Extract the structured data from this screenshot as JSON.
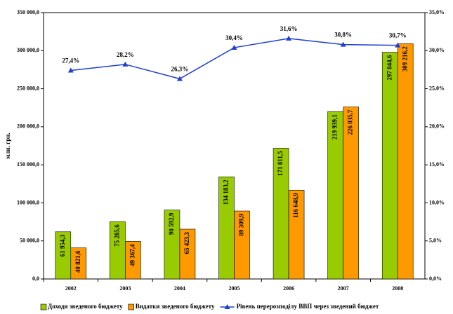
{
  "chart_data": {
    "type": "bar",
    "y_label": "млн. грн.",
    "categories": [
      "2002",
      "2003",
      "2004",
      "2005",
      "2006",
      "2007",
      "2008"
    ],
    "series": [
      {
        "name": "Доходи зведеного бюджету",
        "color": "#99cc00",
        "type": "bar",
        "values": [
          61954.3,
          75285.6,
          90592.9,
          134183.2,
          171811.5,
          219939.1,
          297844.6
        ],
        "value_labels": [
          "61 954,3",
          "75 285,6",
          "90 592,9",
          "134 183,2",
          "171 811,5",
          "219 939,1",
          "297 844,6"
        ]
      },
      {
        "name": "Видатки зведеного бюджету",
        "color": "#ff9900",
        "type": "bar",
        "values": [
          40821.6,
          49367.4,
          65423.3,
          89309.9,
          116648.9,
          226035.7,
          309216.2
        ],
        "value_labels": [
          "40 821,6",
          "49 367,4",
          "65 423,3",
          "89 309,9",
          "116 648,9",
          "226 035,7",
          "309 216,2"
        ]
      },
      {
        "name": "Рівень перерозподілу ВВП через зведений бюджет",
        "color": "#1f3fd0",
        "type": "line",
        "axis": "y2",
        "values": [
          27.4,
          28.2,
          26.3,
          30.4,
          31.6,
          30.8,
          30.7
        ],
        "value_labels": [
          "27,4%",
          "28,2%",
          "26,3%",
          "30,4%",
          "31,6%",
          "30,8%",
          "30,7%"
        ]
      }
    ],
    "ylim": [
      0,
      350000
    ],
    "yticks": [
      {
        "value": 0,
        "label": "0,0"
      },
      {
        "value": 50000,
        "label": "50 000,0"
      },
      {
        "value": 100000,
        "label": "100 000,0"
      },
      {
        "value": 150000,
        "label": "150 000,0"
      },
      {
        "value": 200000,
        "label": "200 000,0"
      },
      {
        "value": 250000,
        "label": "250 000,0"
      },
      {
        "value": 300000,
        "label": "300 000,0"
      },
      {
        "value": 350000,
        "label": "350 000,0"
      }
    ],
    "y2lim": [
      0,
      35
    ],
    "y2ticks": [
      {
        "value": 0,
        "label": "0,0%"
      },
      {
        "value": 5,
        "label": "5,0%"
      },
      {
        "value": 10,
        "label": "10,0%"
      },
      {
        "value": 15,
        "label": "15,0%"
      },
      {
        "value": 20,
        "label": "20,0%"
      },
      {
        "value": 25,
        "label": "25,0%"
      },
      {
        "value": 30,
        "label": "30,0%"
      },
      {
        "value": 35,
        "label": "35,0%"
      }
    ]
  }
}
